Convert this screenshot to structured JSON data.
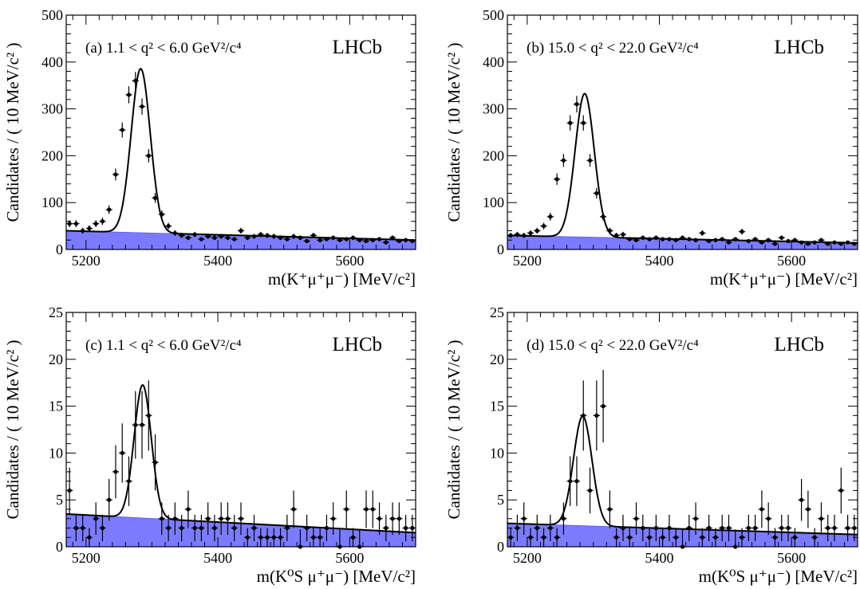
{
  "chart_data": [
    {
      "type": "scatter",
      "panel": "a",
      "annotation": "(a)  1.1 < q² < 6.0  GeV²/c⁴",
      "experiment_label": "LHCb",
      "ylabel": "Candidates / ( 10 MeV/c² )",
      "xlabel": "m(K⁺μ⁺μ⁻) [MeV/c²]",
      "xlim": [
        5170,
        5700
      ],
      "ylim": [
        0,
        500
      ],
      "x_ticks": [
        5200,
        5400,
        5600
      ],
      "y_ticks": [
        0,
        100,
        200,
        300,
        400,
        500
      ],
      "x": [
        5175,
        5185,
        5195,
        5205,
        5215,
        5225,
        5235,
        5245,
        5255,
        5265,
        5275,
        5285,
        5295,
        5305,
        5315,
        5325,
        5335,
        5345,
        5355,
        5365,
        5375,
        5385,
        5395,
        5405,
        5415,
        5425,
        5435,
        5445,
        5455,
        5465,
        5475,
        5485,
        5495,
        5505,
        5515,
        5525,
        5535,
        5545,
        5555,
        5565,
        5575,
        5585,
        5595,
        5605,
        5615,
        5625,
        5635,
        5645,
        5655,
        5665,
        5675,
        5685,
        5695
      ],
      "y": [
        55,
        55,
        40,
        45,
        55,
        60,
        85,
        160,
        255,
        330,
        360,
        305,
        200,
        110,
        75,
        50,
        35,
        30,
        25,
        32,
        22,
        28,
        25,
        28,
        25,
        22,
        40,
        25,
        28,
        32,
        30,
        28,
        25,
        22,
        28,
        25,
        18,
        30,
        20,
        22,
        25,
        20,
        22,
        25,
        20,
        18,
        20,
        22,
        15,
        25,
        18,
        20,
        18
      ],
      "model": {
        "signal_amplitude": 350,
        "peak_mean": 5283,
        "peak_sigma": 14.5,
        "background_start": 40,
        "background_end": 20,
        "background_form": "linear"
      },
      "series": [
        {
          "name": "Data",
          "style": "points with error bars"
        },
        {
          "name": "Total fit",
          "style": "black line"
        },
        {
          "name": "Background",
          "style": "blue filled area",
          "color": "#7b7bff"
        }
      ]
    },
    {
      "type": "scatter",
      "panel": "b",
      "annotation": "(b) 15.0 < q² < 22.0 GeV²/c⁴",
      "experiment_label": "LHCb",
      "ylabel": "Candidates / ( 10 MeV/c² )",
      "xlabel": "m(K⁺μ⁺μ⁻) [MeV/c²]",
      "xlim": [
        5170,
        5700
      ],
      "ylim": [
        0,
        500
      ],
      "x_ticks": [
        5200,
        5400,
        5600
      ],
      "y_ticks": [
        0,
        100,
        200,
        300,
        400,
        500
      ],
      "x": [
        5175,
        5185,
        5195,
        5205,
        5215,
        5225,
        5235,
        5245,
        5255,
        5265,
        5275,
        5285,
        5295,
        5305,
        5315,
        5325,
        5335,
        5345,
        5355,
        5365,
        5375,
        5385,
        5395,
        5405,
        5415,
        5425,
        5435,
        5445,
        5455,
        5465,
        5475,
        5485,
        5495,
        5505,
        5515,
        5525,
        5535,
        5545,
        5555,
        5565,
        5575,
        5585,
        5595,
        5605,
        5615,
        5625,
        5635,
        5645,
        5655,
        5665,
        5675,
        5685,
        5695
      ],
      "y": [
        30,
        32,
        30,
        35,
        40,
        50,
        70,
        150,
        190,
        270,
        310,
        270,
        190,
        120,
        70,
        40,
        30,
        32,
        22,
        20,
        25,
        22,
        25,
        22,
        22,
        20,
        25,
        22,
        20,
        35,
        18,
        20,
        22,
        15,
        22,
        38,
        18,
        22,
        15,
        20,
        12,
        25,
        18,
        20,
        15,
        12,
        15,
        20,
        12,
        15,
        12,
        15,
        12
      ],
      "model": {
        "signal_amplitude": 306,
        "peak_mean": 5287,
        "peak_sigma": 14.5,
        "background_start": 30,
        "background_end": 14,
        "background_form": "linear"
      },
      "series": [
        {
          "name": "Data",
          "style": "points with error bars"
        },
        {
          "name": "Total fit",
          "style": "black line"
        },
        {
          "name": "Background",
          "style": "blue filled area",
          "color": "#7b7bff"
        }
      ]
    },
    {
      "type": "scatter",
      "panel": "c",
      "annotation": "(c)  1.1 < q² < 6.0  GeV²/c⁴",
      "experiment_label": "LHCb",
      "ylabel": "Candidates / ( 10 MeV/c² )",
      "xlabel": "m(K⁰S μ⁺μ⁻) [MeV/c²]",
      "xlim": [
        5170,
        5700
      ],
      "ylim": [
        0,
        25
      ],
      "x_ticks": [
        5200,
        5400,
        5600
      ],
      "y_ticks": [
        0,
        5,
        10,
        15,
        20,
        25
      ],
      "x": [
        5175,
        5185,
        5195,
        5205,
        5215,
        5225,
        5235,
        5245,
        5255,
        5265,
        5275,
        5285,
        5295,
        5305,
        5315,
        5325,
        5335,
        5345,
        5355,
        5365,
        5375,
        5385,
        5395,
        5405,
        5415,
        5425,
        5435,
        5445,
        5455,
        5465,
        5475,
        5485,
        5495,
        5505,
        5515,
        5525,
        5535,
        5545,
        5555,
        5565,
        5575,
        5585,
        5595,
        5605,
        5615,
        5625,
        5635,
        5645,
        5655,
        5665,
        5675,
        5685,
        5695
      ],
      "y": [
        6,
        2,
        2,
        1,
        3,
        2,
        5,
        8,
        10,
        7,
        13,
        13,
        14,
        9,
        3,
        2,
        3,
        2,
        4,
        2,
        2,
        3,
        2,
        3,
        3,
        2,
        3,
        1,
        2,
        1,
        1,
        1,
        1,
        2,
        4,
        0,
        2,
        1,
        1,
        2,
        3,
        0,
        4,
        1,
        0,
        4,
        4,
        3,
        2,
        3,
        3,
        2,
        2
      ],
      "model": {
        "signal_amplitude": 14.2,
        "peak_mean": 5286,
        "peak_sigma": 13,
        "background_start": 3.5,
        "background_end": 1.5,
        "background_form": "linear"
      },
      "series": [
        {
          "name": "Data",
          "style": "points with error bars"
        },
        {
          "name": "Total fit",
          "style": "black line"
        },
        {
          "name": "Background",
          "style": "blue filled area",
          "color": "#7b7bff"
        }
      ]
    },
    {
      "type": "scatter",
      "panel": "d",
      "annotation": "(d) 15.0 < q² < 22.0 GeV²/c⁴",
      "experiment_label": "LHCb",
      "ylabel": "Candidates / ( 10 MeV/c² )",
      "xlabel": "m(K⁰S μ⁺μ⁻) [MeV/c²]",
      "xlim": [
        5170,
        5700
      ],
      "ylim": [
        0,
        25
      ],
      "x_ticks": [
        5200,
        5400,
        5600
      ],
      "y_ticks": [
        0,
        5,
        10,
        15,
        20,
        25
      ],
      "x": [
        5175,
        5185,
        5195,
        5205,
        5215,
        5225,
        5235,
        5245,
        5255,
        5265,
        5275,
        5285,
        5295,
        5305,
        5315,
        5325,
        5335,
        5345,
        5355,
        5365,
        5375,
        5385,
        5395,
        5405,
        5415,
        5425,
        5435,
        5445,
        5455,
        5465,
        5475,
        5485,
        5495,
        5505,
        5515,
        5525,
        5535,
        5545,
        5555,
        5565,
        5575,
        5585,
        5595,
        5605,
        5615,
        5625,
        5635,
        5645,
        5655,
        5665,
        5675,
        5685,
        5695
      ],
      "y": [
        1,
        2,
        3,
        1,
        2,
        1,
        2,
        1,
        3,
        7,
        7,
        14,
        6,
        14,
        15,
        4,
        1,
        2,
        1,
        3,
        2,
        1,
        2,
        1,
        2,
        1,
        0,
        2,
        3,
        1,
        2,
        1,
        2,
        2,
        0,
        1,
        2,
        2,
        4,
        3,
        1,
        2,
        2,
        1,
        5,
        4,
        1,
        3,
        2,
        2,
        6,
        2,
        2
      ],
      "model": {
        "signal_amplitude": 11.7,
        "peak_mean": 5284,
        "peak_sigma": 14,
        "background_start": 2.5,
        "background_end": 1.3,
        "background_form": "linear"
      },
      "series": [
        {
          "name": "Data",
          "style": "points with error bars"
        },
        {
          "name": "Total fit",
          "style": "black line"
        },
        {
          "name": "Background",
          "style": "blue filled area",
          "color": "#7b7bff"
        }
      ]
    }
  ]
}
